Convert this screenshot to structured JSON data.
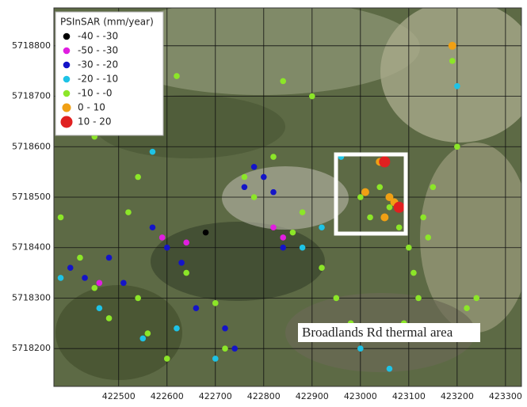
{
  "chart_data": {
    "type": "scatter",
    "legend_title": "PSInSAR (mm/year)",
    "legend": "upper left",
    "annotation": "Broadlands Rd thermal area",
    "grid": true,
    "xlim": [
      422366,
      423333
    ],
    "ylim": [
      5718125,
      5718875
    ],
    "xticks": [
      422500,
      422600,
      422700,
      422800,
      422900,
      423000,
      423100,
      423200,
      423300
    ],
    "yticks": [
      5718200,
      5718300,
      5718400,
      5718500,
      5718600,
      5718700,
      5718800
    ],
    "series": [
      {
        "name": "-40 - -30",
        "color": "#000000",
        "x": [
          422680
        ],
        "values": [
          5718430
        ]
      },
      {
        "name": "-50 - -30",
        "color": "#e01ee0",
        "x": [
          422590,
          422640,
          422460,
          422820,
          422840
        ],
        "values": [
          5718420,
          5718410,
          5718330,
          5718440,
          5718420
        ]
      },
      {
        "name": "-30 - -20",
        "color": "#1414c8",
        "x": [
          422400,
          422430,
          422480,
          422570,
          422600,
          422630,
          422720,
          422740,
          422780,
          422800,
          422760,
          422820,
          422840,
          422660,
          422510
        ],
        "values": [
          5718360,
          5718340,
          5718380,
          5718440,
          5718400,
          5718370,
          5718240,
          5718200,
          5718560,
          5718540,
          5718520,
          5718510,
          5718400,
          5718280,
          5718330
        ]
      },
      {
        "name": "-20 - -10",
        "color": "#1ec3e6",
        "x": [
          422380,
          422460,
          422550,
          422620,
          422700,
          422880,
          422920,
          423000,
          423200,
          423060,
          422570,
          422960
        ],
        "values": [
          5718340,
          5718280,
          5718220,
          5718240,
          5718180,
          5718400,
          5718440,
          5718200,
          5718720,
          5718160,
          5718590,
          5718580
        ]
      },
      {
        "name": "-10 - -0",
        "color": "#8ce628",
        "x": [
          422420,
          422450,
          422480,
          422520,
          422540,
          422560,
          422600,
          422640,
          422700,
          422720,
          422760,
          422780,
          422820,
          422860,
          422880,
          422920,
          422950,
          422980,
          423000,
          423020,
          423040,
          423060,
          423080,
          423100,
          423110,
          423120,
          423130,
          423140,
          423090,
          423190,
          423200,
          422450,
          422620,
          422840,
          422900,
          423220,
          423240,
          422540,
          422380,
          423150
        ],
        "values": [
          5718380,
          5718320,
          5718260,
          5718470,
          5718300,
          5718230,
          5718180,
          5718350,
          5718290,
          5718200,
          5718540,
          5718500,
          5718580,
          5718430,
          5718470,
          5718360,
          5718300,
          5718250,
          5718500,
          5718460,
          5718520,
          5718480,
          5718440,
          5718400,
          5718350,
          5718300,
          5718460,
          5718420,
          5718250,
          5718770,
          5718600,
          5718620,
          5718740,
          5718730,
          5718700,
          5718280,
          5718300,
          5718540,
          5718460,
          5718520
        ]
      },
      {
        "name": "0 - 10",
        "color": "#f0a014",
        "x": [
          423040,
          423010,
          423060,
          423050,
          423190,
          423070
        ],
        "values": [
          5718570,
          5718510,
          5718500,
          5718460,
          5718800,
          5718490
        ]
      },
      {
        "name": "10 - 20",
        "color": "#e02020",
        "x": [
          423050,
          423080
        ],
        "values": [
          5718570,
          5718480
        ]
      }
    ]
  }
}
